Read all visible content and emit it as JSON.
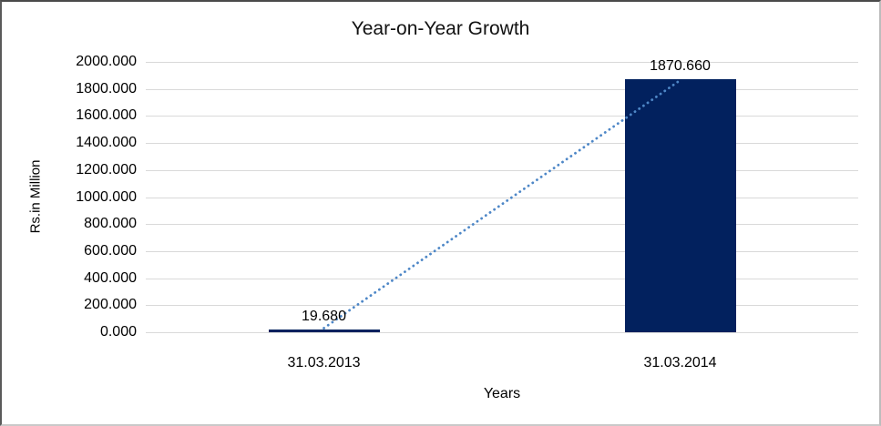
{
  "chart_data": {
    "type": "bar",
    "title": "Year-on-Year Growth",
    "xlabel": "Years",
    "ylabel": "Rs.in Million",
    "categories": [
      "31.03.2013",
      "31.03.2014"
    ],
    "values": [
      19.68,
      1870.66
    ],
    "data_labels": [
      "19.680",
      "1870.660"
    ],
    "y_ticks": [
      "2000.000",
      "1800.000",
      "1600.000",
      "1400.000",
      "1200.000",
      "1000.000",
      "800.000",
      "600.000",
      "400.000",
      "200.000",
      "0.000"
    ],
    "ylim": [
      0,
      2000
    ],
    "grid": true,
    "legend": "none",
    "trendline": {
      "style": "dotted",
      "connects": [
        "31.03.2013",
        "31.03.2014"
      ]
    },
    "colors": {
      "bar": "#02215E",
      "trendline": "#4E87C7",
      "gridline": "#D9D9D9",
      "text": "#000000"
    }
  }
}
